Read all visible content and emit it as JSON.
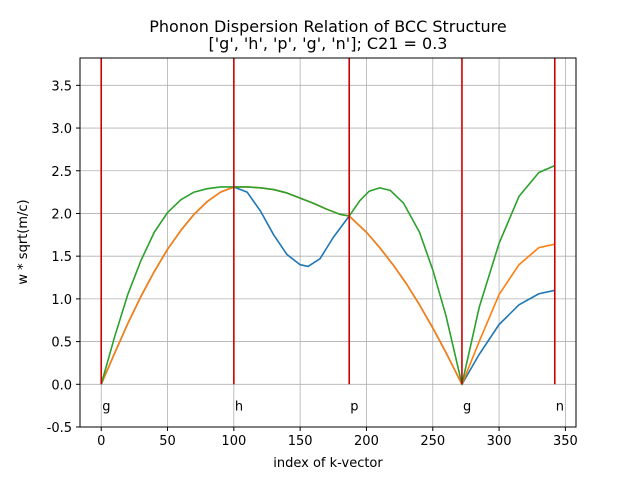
{
  "chart_data": {
    "type": "line",
    "title": "Phonon Dispersion Relation of BCC Structure",
    "subtitle": "['g', 'h', 'p', 'g', 'n']; C21 = 0.3",
    "xlabel": "index of k-vector",
    "ylabel": "w * sqrt(m/c)",
    "xlim": [
      -16,
      358
    ],
    "ylim": [
      -0.5,
      3.82
    ],
    "xticks": [
      0,
      50,
      100,
      150,
      200,
      250,
      300,
      350
    ],
    "yticks": [
      -0.5,
      0.0,
      0.5,
      1.0,
      1.5,
      2.0,
      2.5,
      3.0,
      3.5
    ],
    "grid": true,
    "high_symmetry_points": [
      {
        "label": "g",
        "x": 0
      },
      {
        "label": "h",
        "x": 100
      },
      {
        "label": "p",
        "x": 187
      },
      {
        "label": "g",
        "x": 272
      },
      {
        "label": "n",
        "x": 342
      }
    ],
    "vline_color": "#cc0000",
    "series": [
      {
        "color": "#1f77b4",
        "points": [
          [
            0,
            0
          ],
          [
            10,
            0.36
          ],
          [
            20,
            0.71
          ],
          [
            30,
            1.03
          ],
          [
            40,
            1.32
          ],
          [
            50,
            1.58
          ],
          [
            60,
            1.8
          ],
          [
            70,
            1.99
          ],
          [
            80,
            2.14
          ],
          [
            90,
            2.25
          ],
          [
            100,
            2.31
          ],
          [
            110,
            2.25
          ],
          [
            120,
            2.03
          ],
          [
            130,
            1.75
          ],
          [
            140,
            1.52
          ],
          [
            150,
            1.4
          ],
          [
            156,
            1.38
          ],
          [
            165,
            1.47
          ],
          [
            175,
            1.72
          ],
          [
            187,
            1.97
          ],
          [
            200,
            1.78
          ],
          [
            210,
            1.6
          ],
          [
            220,
            1.4
          ],
          [
            230,
            1.18
          ],
          [
            240,
            0.93
          ],
          [
            250,
            0.66
          ],
          [
            260,
            0.37
          ],
          [
            272,
            0
          ],
          [
            285,
            0.35
          ],
          [
            300,
            0.7
          ],
          [
            315,
            0.93
          ],
          [
            330,
            1.06
          ],
          [
            342,
            1.1
          ]
        ]
      },
      {
        "color": "#ff7f0e",
        "points": [
          [
            0,
            0
          ],
          [
            10,
            0.36
          ],
          [
            20,
            0.71
          ],
          [
            30,
            1.03
          ],
          [
            40,
            1.32
          ],
          [
            50,
            1.58
          ],
          [
            60,
            1.8
          ],
          [
            70,
            1.99
          ],
          [
            80,
            2.14
          ],
          [
            90,
            2.25
          ],
          [
            100,
            2.31
          ],
          [
            110,
            2.31
          ],
          [
            120,
            2.3
          ],
          [
            130,
            2.28
          ],
          [
            140,
            2.24
          ],
          [
            150,
            2.18
          ],
          [
            160,
            2.12
          ],
          [
            170,
            2.05
          ],
          [
            180,
            1.99
          ],
          [
            187,
            1.97
          ],
          [
            200,
            1.78
          ],
          [
            210,
            1.6
          ],
          [
            220,
            1.4
          ],
          [
            230,
            1.18
          ],
          [
            240,
            0.93
          ],
          [
            250,
            0.66
          ],
          [
            260,
            0.37
          ],
          [
            272,
            0
          ],
          [
            285,
            0.5
          ],
          [
            300,
            1.05
          ],
          [
            315,
            1.4
          ],
          [
            330,
            1.6
          ],
          [
            342,
            1.64
          ]
        ]
      },
      {
        "color": "#2ca02c",
        "points": [
          [
            0,
            0
          ],
          [
            10,
            0.55
          ],
          [
            20,
            1.05
          ],
          [
            30,
            1.45
          ],
          [
            40,
            1.78
          ],
          [
            50,
            2.01
          ],
          [
            60,
            2.16
          ],
          [
            70,
            2.25
          ],
          [
            80,
            2.29
          ],
          [
            90,
            2.31
          ],
          [
            100,
            2.31
          ],
          [
            110,
            2.31
          ],
          [
            120,
            2.3
          ],
          [
            130,
            2.28
          ],
          [
            140,
            2.24
          ],
          [
            150,
            2.18
          ],
          [
            160,
            2.12
          ],
          [
            170,
            2.05
          ],
          [
            180,
            1.99
          ],
          [
            187,
            1.97
          ],
          [
            195,
            2.15
          ],
          [
            202,
            2.26
          ],
          [
            210,
            2.3
          ],
          [
            218,
            2.27
          ],
          [
            228,
            2.12
          ],
          [
            240,
            1.78
          ],
          [
            250,
            1.34
          ],
          [
            260,
            0.8
          ],
          [
            272,
            0
          ],
          [
            285,
            0.9
          ],
          [
            300,
            1.65
          ],
          [
            315,
            2.2
          ],
          [
            330,
            2.48
          ],
          [
            342,
            2.56
          ]
        ]
      }
    ]
  }
}
